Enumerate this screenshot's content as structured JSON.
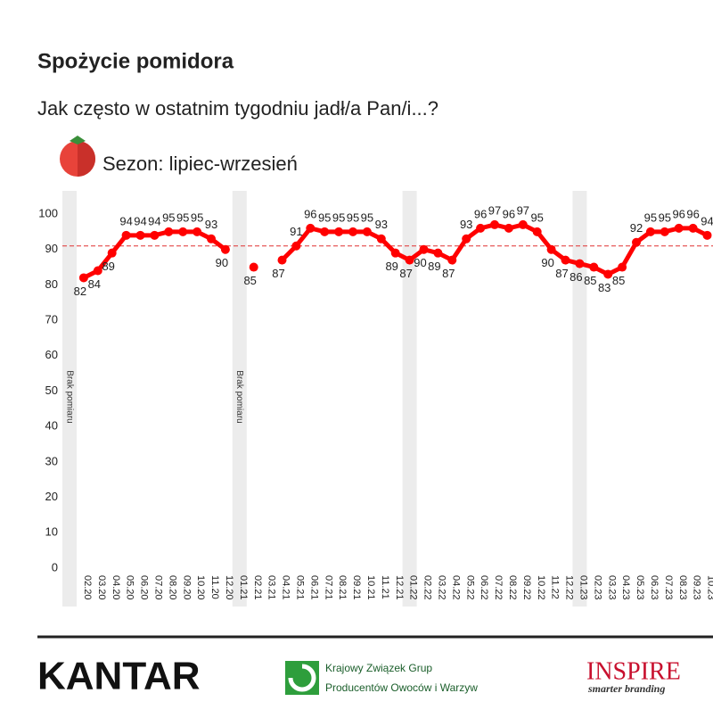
{
  "header": {
    "title": "Spożycie pomidora",
    "subtitle": "Jak często w ostatnim tygodniu jadł/a Pan/i...?",
    "season": "Sezon: lipiec-wrzesień"
  },
  "chart_data": {
    "type": "line",
    "categories": [
      null,
      "02.20",
      "03.20",
      "04.20",
      "05.20",
      "06.20",
      "07.20",
      "08.20",
      "09.20",
      "10.20",
      "11.20",
      "12.20",
      "01.21",
      "02.21",
      "03.21",
      "04.21",
      "05.21",
      "06.21",
      "07.21",
      "08.21",
      "09.21",
      "10.21",
      "11.21",
      "12.21",
      "01.22",
      "02.22",
      "03.22",
      "04.22",
      "05.22",
      "06.22",
      "07.22",
      "08.22",
      "09.22",
      "10.22",
      "11.22",
      "12.22",
      "01.23",
      "02.23",
      "03.23",
      "04.23",
      "05.23",
      "06.23",
      "07.23",
      "08.23",
      "09.23",
      "10.23"
    ],
    "values": [
      null,
      82,
      84,
      89,
      94,
      94,
      94,
      95,
      95,
      95,
      93,
      90,
      null,
      85,
      null,
      87,
      91,
      96,
      95,
      95,
      95,
      95,
      93,
      89,
      87,
      90,
      89,
      87,
      93,
      96,
      97,
      96,
      97,
      95,
      90,
      87,
      86,
      85,
      83,
      85,
      92,
      95,
      95,
      96,
      96,
      94
    ],
    "color": "#ff0000",
    "reference_line": 91,
    "annotations": [
      "Brak pomiaru",
      "Brak pomiaru"
    ],
    "ylim": [
      0,
      100
    ],
    "yticks": [
      0,
      10,
      20,
      30,
      40,
      50,
      60,
      70,
      80,
      90,
      100
    ]
  },
  "footer": {
    "kantar": "KANTAR",
    "kzg_line1": "Krajowy Związek Grup",
    "kzg_line2": "Producentów Owoców i Warzyw",
    "inspire": "INSPIRE",
    "inspire_tagline": "smarter branding"
  }
}
